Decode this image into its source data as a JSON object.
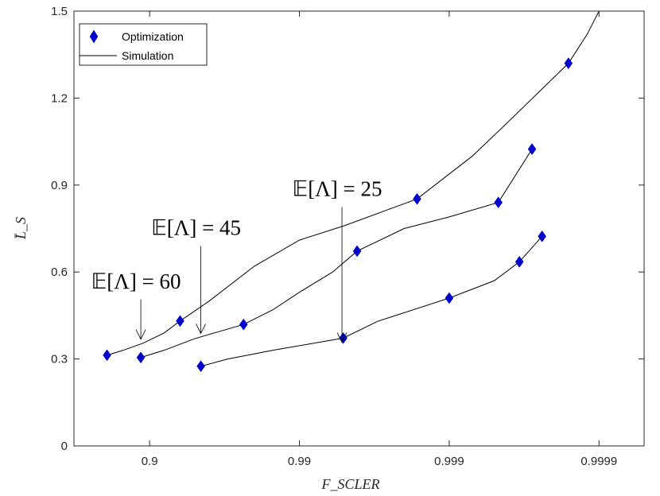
{
  "chart_data": {
    "type": "line",
    "title": "",
    "xlabel": "F_SCLER",
    "ylabel": "L̄_S",
    "x_scale": "log of 1/(1-F)",
    "xlim": [
      0.68,
      0.99995
    ],
    "ylim": [
      0,
      1.5
    ],
    "x_ticks": [
      0.9,
      0.99,
      0.999,
      0.9999
    ],
    "x_tick_labels": [
      "0.9",
      "0.99",
      "0.999",
      "0.9999"
    ],
    "y_ticks": [
      0,
      0.3,
      0.6,
      0.9,
      1.2,
      1.5
    ],
    "y_tick_labels": [
      "0",
      "0.3",
      "0.6",
      "0.9",
      "1.2",
      "1.5"
    ],
    "grid": false,
    "legend": {
      "position": "top-left",
      "entries": [
        {
          "label": "Optimization",
          "marker": "diamond",
          "color": "#0000cc"
        },
        {
          "label": "Simulation",
          "marker": "line",
          "color": "#000000"
        }
      ]
    },
    "series": [
      {
        "annotation": "𝔼[Λ] = 60",
        "annotation_arrow_target": [
          0.8855,
          0.39
        ],
        "optimization_points": [
          [
            0.8075,
            0.313
          ],
          [
            0.9374,
            0.431
          ],
          [
            0.99836,
            0.852
          ],
          [
            0.99984,
            1.32
          ]
        ],
        "simulation_line": [
          [
            0.8075,
            0.313
          ],
          [
            0.85,
            0.33
          ],
          [
            0.89,
            0.355
          ],
          [
            0.92,
            0.39
          ],
          [
            0.9374,
            0.431
          ],
          [
            0.96,
            0.5
          ],
          [
            0.98,
            0.62
          ],
          [
            0.99,
            0.71
          ],
          [
            0.995,
            0.76
          ],
          [
            0.99836,
            0.852
          ],
          [
            0.9993,
            1.0
          ],
          [
            0.9996,
            1.12
          ],
          [
            0.99984,
            1.32
          ],
          [
            0.99988,
            1.42
          ],
          [
            0.9999,
            1.5
          ]
        ]
      },
      {
        "annotation": "𝔼[Λ] = 45",
        "annotation_arrow_target": [
          0.9545,
          0.41
        ],
        "optimization_points": [
          [
            0.8855,
            0.305
          ],
          [
            0.9764,
            0.419
          ],
          [
            0.99588,
            0.672
          ],
          [
            0.99953,
            0.84
          ],
          [
            0.99972,
            1.024
          ]
        ],
        "simulation_line": [
          [
            0.8855,
            0.305
          ],
          [
            0.92,
            0.33
          ],
          [
            0.95,
            0.37
          ],
          [
            0.9764,
            0.419
          ],
          [
            0.985,
            0.47
          ],
          [
            0.99,
            0.53
          ],
          [
            0.994,
            0.6
          ],
          [
            0.99588,
            0.672
          ],
          [
            0.998,
            0.75
          ],
          [
            0.999,
            0.79
          ],
          [
            0.99953,
            0.84
          ],
          [
            0.99972,
            1.024
          ]
        ]
      },
      {
        "annotation": "𝔼[Λ] = 25",
        "annotation_arrow_target": [
          0.9948,
          0.38
        ],
        "optimization_points": [
          [
            0.9545,
            0.275
          ],
          [
            0.9949,
            0.372
          ],
          [
            0.999,
            0.51
          ],
          [
            0.99966,
            0.635
          ],
          [
            0.99976,
            0.723
          ]
        ],
        "simulation_line": [
          [
            0.9545,
            0.275
          ],
          [
            0.97,
            0.3
          ],
          [
            0.985,
            0.33
          ],
          [
            0.9949,
            0.372
          ],
          [
            0.997,
            0.43
          ],
          [
            0.999,
            0.51
          ],
          [
            0.9995,
            0.57
          ],
          [
            0.99966,
            0.635
          ],
          [
            0.99976,
            0.723
          ]
        ]
      }
    ]
  }
}
